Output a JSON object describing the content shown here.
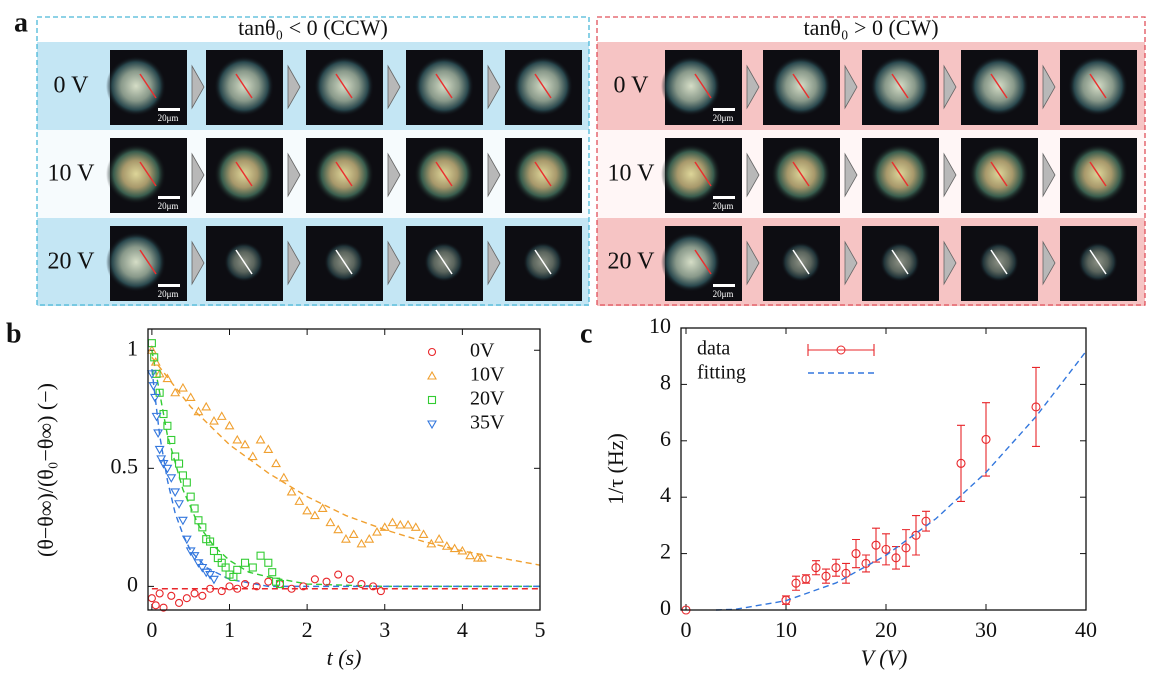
{
  "panel_labels": [
    "a",
    "b",
    "c"
  ],
  "panel_a": {
    "groups": [
      {
        "title": "tanθ₀ < 0 (CCW)",
        "rows": [
          "0 V",
          "10 V",
          "20 V"
        ]
      },
      {
        "title": "tanθ₀ > 0 (CW)",
        "rows": [
          "0 V",
          "10 V",
          "20 V"
        ]
      }
    ],
    "scale_bar": "20μm"
  },
  "chart_data": [
    {
      "type": "scatter",
      "xlabel": "t (s)",
      "ylabel": "(θ−θ∞)/(θ₀−θ∞) (−)",
      "xlim": [
        -0.05,
        5
      ],
      "ylim": [
        -0.1,
        1.09
      ],
      "xticks": [
        0,
        1,
        2,
        3,
        4,
        5
      ],
      "yticks": [
        0,
        0.5,
        1
      ],
      "legend": "upper right",
      "series": [
        {
          "name": "0V",
          "color": "#e8262a",
          "marker": "circle",
          "x": [
            0,
            0.05,
            0.1,
            0.15,
            0.25,
            0.35,
            0.45,
            0.55,
            0.65,
            0.75,
            0.9,
            1.0,
            1.1,
            1.2,
            1.35,
            1.5,
            1.65,
            1.8,
            1.95,
            2.1,
            2.25,
            2.4,
            2.55,
            2.7,
            2.85,
            2.95
          ],
          "values": [
            -0.05,
            -0.08,
            -0.03,
            -0.09,
            -0.04,
            -0.07,
            -0.05,
            -0.03,
            -0.04,
            -0.01,
            -0.02,
            0.0,
            -0.01,
            0.01,
            0.0,
            0.02,
            0.01,
            -0.01,
            0.0,
            0.03,
            0.02,
            0.05,
            0.03,
            0.01,
            0.0,
            -0.02
          ]
        },
        {
          "name": "10V",
          "color": "#f0a030",
          "marker": "triangle-up",
          "x": [
            0,
            0.05,
            0.1,
            0.2,
            0.3,
            0.4,
            0.5,
            0.6,
            0.7,
            0.8,
            0.9,
            1.0,
            1.1,
            1.2,
            1.3,
            1.4,
            1.5,
            1.6,
            1.7,
            1.8,
            1.9,
            2.0,
            2.1,
            2.2,
            2.3,
            2.4,
            2.5,
            2.6,
            2.7,
            2.8,
            2.9,
            3.0,
            3.1,
            3.2,
            3.3,
            3.4,
            3.5,
            3.6,
            3.7,
            3.8,
            3.9,
            4.0,
            4.1,
            4.2,
            4.25
          ],
          "values": [
            1.0,
            0.95,
            0.9,
            0.88,
            0.82,
            0.84,
            0.8,
            0.74,
            0.76,
            0.7,
            0.72,
            0.68,
            0.62,
            0.6,
            0.55,
            0.62,
            0.58,
            0.52,
            0.46,
            0.4,
            0.36,
            0.32,
            0.3,
            0.33,
            0.27,
            0.24,
            0.2,
            0.22,
            0.18,
            0.2,
            0.23,
            0.25,
            0.27,
            0.26,
            0.26,
            0.25,
            0.22,
            0.18,
            0.2,
            0.17,
            0.16,
            0.15,
            0.13,
            0.12,
            0.12
          ]
        },
        {
          "name": "20V",
          "color": "#33cc33",
          "marker": "square",
          "x": [
            0,
            0.03,
            0.06,
            0.1,
            0.15,
            0.2,
            0.25,
            0.3,
            0.35,
            0.4,
            0.45,
            0.5,
            0.55,
            0.6,
            0.65,
            0.7,
            0.75,
            0.8,
            0.85,
            0.9,
            0.95,
            1.0,
            1.05,
            1.1,
            1.2,
            1.3,
            1.4,
            1.5,
            1.55,
            1.6,
            1.65
          ],
          "values": [
            1.03,
            0.97,
            0.9,
            0.82,
            0.73,
            0.68,
            0.62,
            0.55,
            0.52,
            0.47,
            0.44,
            0.38,
            0.33,
            0.28,
            0.25,
            0.2,
            0.19,
            0.15,
            0.12,
            0.1,
            0.08,
            0.05,
            0.04,
            0.07,
            0.1,
            0.08,
            0.13,
            0.1,
            0.06,
            0.02,
            0.01
          ]
        },
        {
          "name": "35V",
          "color": "#3377dd",
          "marker": "triangle-down",
          "x": [
            0,
            0.02,
            0.04,
            0.06,
            0.08,
            0.1,
            0.12,
            0.15,
            0.2,
            0.25,
            0.3,
            0.35,
            0.4,
            0.45,
            0.5,
            0.55,
            0.6,
            0.65,
            0.7,
            0.75,
            0.8
          ],
          "values": [
            0.9,
            0.85,
            0.8,
            0.72,
            0.65,
            0.58,
            0.54,
            0.52,
            0.5,
            0.46,
            0.4,
            0.35,
            0.28,
            0.2,
            0.15,
            0.13,
            0.1,
            0.08,
            0.06,
            0.05,
            0.03
          ]
        }
      ],
      "fits": [
        {
          "color": "#e8262a",
          "x": [
            0,
            5
          ],
          "values": [
            -0.01,
            -0.01
          ]
        },
        {
          "color": "#f0a030",
          "x": [
            0,
            0.5,
            1,
            1.5,
            2,
            2.5,
            3,
            3.5,
            4,
            4.5,
            5
          ],
          "values": [
            0.97,
            0.76,
            0.6,
            0.48,
            0.38,
            0.3,
            0.24,
            0.19,
            0.15,
            0.12,
            0.09
          ]
        },
        {
          "color": "#33cc33",
          "x": [
            0,
            0.2,
            0.4,
            0.6,
            0.8,
            1,
            1.25,
            1.5,
            2,
            3,
            5
          ],
          "values": [
            1.0,
            0.64,
            0.41,
            0.26,
            0.17,
            0.11,
            0.06,
            0.04,
            0.01,
            0.0,
            0.0
          ]
        },
        {
          "color": "#3377dd",
          "x": [
            0,
            0.1,
            0.2,
            0.3,
            0.4,
            0.5,
            0.7,
            1,
            1.5,
            3,
            5
          ],
          "values": [
            0.92,
            0.64,
            0.45,
            0.31,
            0.22,
            0.15,
            0.08,
            0.03,
            0.0,
            0.0,
            0.0
          ]
        }
      ]
    },
    {
      "type": "errorbar",
      "xlabel": "V (V)",
      "ylabel": "1/τ (Hz)",
      "xlim": [
        -0.5,
        40
      ],
      "ylim": [
        0,
        10
      ],
      "xticks": [
        0,
        10,
        20,
        30,
        40
      ],
      "yticks": [
        0,
        2,
        4,
        6,
        8,
        10
      ],
      "legend": "upper left",
      "series": [
        {
          "name": "data",
          "color": "#e8262a",
          "x": [
            0,
            10,
            11,
            12,
            13,
            14,
            15,
            16,
            17,
            18,
            19,
            20,
            21,
            22,
            23,
            24,
            27.5,
            30,
            35
          ],
          "values": [
            0,
            0.35,
            0.95,
            1.1,
            1.5,
            1.2,
            1.5,
            1.3,
            2.0,
            1.65,
            2.3,
            2.15,
            1.85,
            2.2,
            2.65,
            3.15,
            5.2,
            6.05,
            7.2
          ],
          "errors": [
            0,
            0.15,
            0.25,
            0.15,
            0.25,
            0.25,
            0.3,
            0.35,
            0.5,
            0.3,
            0.6,
            0.55,
            0.4,
            0.65,
            0.7,
            0.35,
            1.35,
            1.3,
            1.4
          ]
        },
        {
          "name": "fitting",
          "color": "#3377dd",
          "style": "dashed",
          "x": [
            3,
            5,
            10,
            15,
            20,
            25,
            30,
            35,
            40
          ],
          "values": [
            0,
            0.027,
            0.33,
            0.96,
            1.94,
            3.24,
            4.88,
            6.86,
            9.17
          ]
        }
      ]
    }
  ]
}
